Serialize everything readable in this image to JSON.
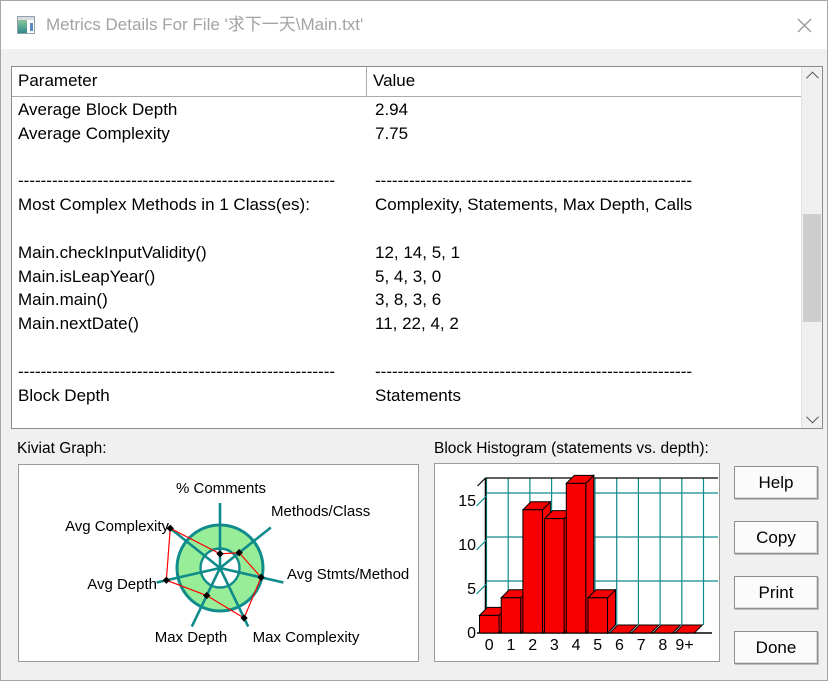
{
  "window": {
    "title": "Metrics Details For File '求下一天\\Main.txt'"
  },
  "table": {
    "columns": [
      "Parameter",
      "Value"
    ],
    "rows": [
      {
        "param": "Average Block Depth",
        "value": "2.94"
      },
      {
        "param": "Average Complexity",
        "value": "7.75"
      },
      {
        "param": "",
        "value": ""
      },
      {
        "param": "--------------------------------------------------------",
        "value": "--------------------------------------------------------"
      },
      {
        "param": "Most Complex Methods in 1 Class(es):",
        "value": "Complexity, Statements, Max Depth, Calls"
      },
      {
        "param": "",
        "value": ""
      },
      {
        "param": "Main.checkInputValidity()",
        "value": "12, 14, 5, 1"
      },
      {
        "param": "Main.isLeapYear()",
        "value": "5, 4, 3, 0"
      },
      {
        "param": "Main.main()",
        "value": "3, 8, 3, 6"
      },
      {
        "param": "Main.nextDate()",
        "value": "11, 22, 4, 2"
      },
      {
        "param": "",
        "value": ""
      },
      {
        "param": "--------------------------------------------------------",
        "value": "--------------------------------------------------------"
      },
      {
        "param": "Block Depth",
        "value": "Statements"
      },
      {
        "param": "",
        "value": ""
      }
    ]
  },
  "sections": {
    "kiviat_caption": "Kiviat Graph:",
    "histogram_caption": "Block Histogram (statements vs. depth):"
  },
  "buttons": [
    {
      "label": "Help"
    },
    {
      "label": "Copy"
    },
    {
      "label": "Print"
    },
    {
      "label": "Done"
    }
  ],
  "colors": {
    "teal_axis": "#0f8b8b",
    "ring_green": "#98ee98",
    "bar_red": "#f70000",
    "title_gray": "#a3a3a3"
  },
  "chart_data": [
    {
      "type": "radar",
      "title": "Kiviat Graph:",
      "axes": [
        "% Comments",
        "Methods/Class",
        "Avg Stmts/Method",
        "Max Complexity",
        "Max Depth",
        "Avg Depth",
        "Avg Complexity"
      ],
      "values_ring_relative": [
        0.33,
        0.57,
        0.98,
        1.29,
        0.71,
        1.28,
        1.48
      ],
      "ring": {
        "inner_radius_ratio": 0.45,
        "outer_radius_ratio": 1.0
      },
      "legend_position": "none",
      "colors": {
        "ring_fill": "#98ee98",
        "axis": "#0f8b8b",
        "data_line": "#ff0000",
        "marker": "#000000"
      }
    },
    {
      "type": "bar",
      "style": "3d",
      "title": "Block Histogram (statements vs. depth):",
      "categories": [
        "0",
        "1",
        "2",
        "3",
        "4",
        "5",
        "6",
        "7",
        "8",
        "9+"
      ],
      "values": [
        2,
        4,
        14,
        13,
        17,
        4,
        0,
        0,
        0,
        0
      ],
      "xlabel": "depth",
      "ylabel": "statements",
      "yticks": [
        0,
        5,
        10,
        15
      ],
      "ylim": [
        0,
        18
      ],
      "grid": true,
      "colors": {
        "bar": "#f70000",
        "grid": "#0f8b8b",
        "axis": "#000000"
      }
    }
  ]
}
